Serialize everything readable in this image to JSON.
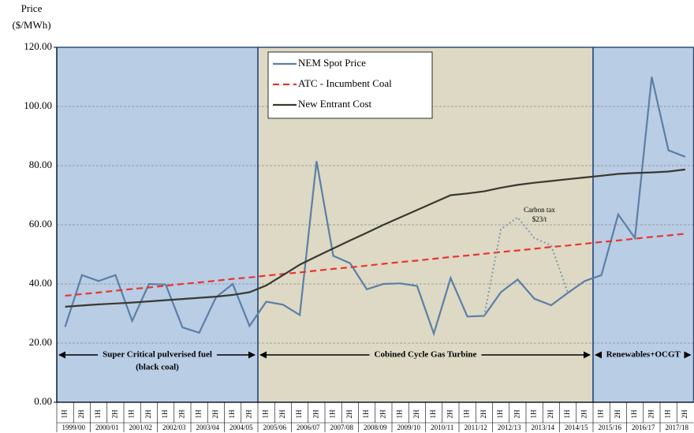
{
  "chart_data": {
    "type": "line",
    "ylabel": [
      "Price",
      "($/MWh)"
    ],
    "ylim": [
      0,
      120
    ],
    "yticks": [
      {
        "value": 0,
        "label": "0.00"
      },
      {
        "value": 20,
        "label": "20.00"
      },
      {
        "value": 40,
        "label": "40.00"
      },
      {
        "value": 60,
        "label": "60.00"
      },
      {
        "value": 80,
        "label": "80.00"
      },
      {
        "value": 100,
        "label": "100.00"
      },
      {
        "value": 120,
        "label": "120.00"
      }
    ],
    "grid": true,
    "legend": "top-left",
    "years": [
      "1999/00",
      "2000/01",
      "2001/02",
      "2002/03",
      "2003/04",
      "2004/05",
      "2005/06",
      "2006/07",
      "2007/08",
      "2008/09",
      "2009/10",
      "2010/11",
      "2011/12",
      "2012/13",
      "2013/14",
      "2014/15",
      "2015/16",
      "2016/17",
      "2017/18"
    ],
    "categories": [
      "1H",
      "2H",
      "1H",
      "2H",
      "1H",
      "2H",
      "1H",
      "2H",
      "1H",
      "2H",
      "1H",
      "2H",
      "1H",
      "2H",
      "1H",
      "2H",
      "1H",
      "2H",
      "1H",
      "2H",
      "1H",
      "2H",
      "1H",
      "2H",
      "1H",
      "2H",
      "1H",
      "2H",
      "1H",
      "2H",
      "1H",
      "2H",
      "1H",
      "2H",
      "1H",
      "2H",
      "1H",
      "2H"
    ],
    "regions": [
      {
        "label": [
          "Super Critical pulverised fuel",
          "(black coal)"
        ],
        "from": "1999/00",
        "to": "2004/05",
        "color": "#b9cde5"
      },
      {
        "label": [
          "Cobined Cycle Gas Turbine"
        ],
        "from": "2005/06",
        "to": "2014/15",
        "color": "#ddd9c4"
      },
      {
        "label": [
          "Renewables+OCGT"
        ],
        "from": "2015/16",
        "to": "2017/18",
        "color": "#b9cde5"
      }
    ],
    "series": [
      {
        "name": "NEM Spot Price",
        "color": "#5b7fa6",
        "style": "solid",
        "values": [
          25.5,
          43,
          41,
          43,
          27.5,
          40,
          39.8,
          25.3,
          23.5,
          35.5,
          40,
          25.8,
          34,
          33,
          29.5,
          81.5,
          49.5,
          47,
          38.2,
          40,
          40.2,
          39.3,
          23.2,
          42,
          29,
          29.2,
          37.2,
          41.5,
          35,
          32.8,
          37,
          41,
          43,
          63.5,
          55.5,
          110,
          85.2,
          83
        ]
      },
      {
        "name": "ATC - Incumbent Coal",
        "color": "#e8352f",
        "style": "dashed",
        "values": [
          36,
          36.6,
          37.1,
          37.7,
          38.3,
          38.8,
          39.4,
          40,
          40.5,
          41.1,
          41.7,
          42.2,
          42.8,
          43.4,
          43.9,
          44.5,
          45.1,
          45.6,
          46.2,
          46.8,
          47.4,
          47.9,
          48.5,
          49.1,
          49.6,
          50.2,
          50.8,
          51.3,
          51.9,
          52.5,
          53,
          53.6,
          54.2,
          54.7,
          55.3,
          55.9,
          56.4,
          57
        ]
      },
      {
        "name": "New Entrant Cost",
        "color": "#38382e",
        "style": "solid",
        "values": [
          32.3,
          32.7,
          33.1,
          33.4,
          33.7,
          34.1,
          34.5,
          34.9,
          35.3,
          35.7,
          36.3,
          37.2,
          39.5,
          43,
          46.5,
          49.3,
          52,
          54.7,
          57.3,
          60,
          62.5,
          65,
          67.5,
          70,
          70.6,
          71.3,
          72.5,
          73.5,
          74.2,
          74.8,
          75.4,
          76,
          76.6,
          77.2,
          77.5,
          77.7,
          78,
          78.7
        ]
      },
      {
        "color": "#7f98b5",
        "style": "dotted",
        "values": [
          null,
          null,
          null,
          null,
          null,
          null,
          null,
          null,
          null,
          null,
          null,
          null,
          null,
          null,
          null,
          null,
          null,
          null,
          null,
          null,
          null,
          null,
          null,
          null,
          null,
          29.2,
          58.5,
          62.5,
          55.5,
          53,
          37,
          null,
          null,
          null,
          null,
          null,
          null,
          null
        ]
      }
    ],
    "annotation": [
      "Carbon tax",
      "$23/t"
    ]
  }
}
